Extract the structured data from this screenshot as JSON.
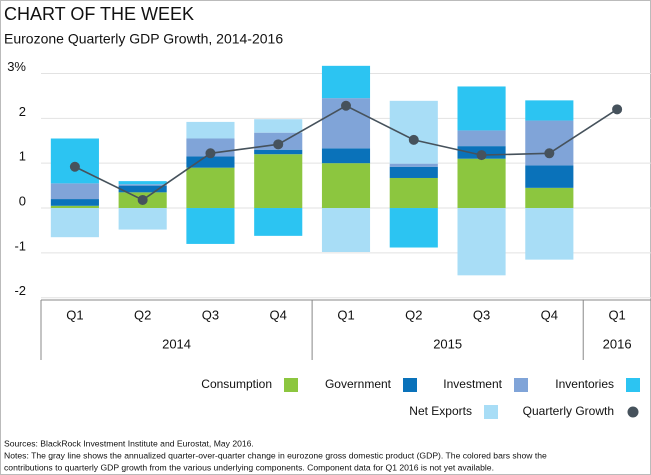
{
  "chart_data": {
    "type": "stacked-bar-line",
    "title": "CHART OF THE WEEK",
    "subtitle": "Eurozone Quarterly GDP Growth, 2014-2016",
    "categories": [
      "Q1",
      "Q2",
      "Q3",
      "Q4",
      "Q1",
      "Q2",
      "Q3",
      "Q4",
      "Q1"
    ],
    "years": [
      "2014",
      "2015",
      "2016"
    ],
    "ylim": [
      -2.05,
      3.3
    ],
    "yticks": [
      {
        "value": 3,
        "label": "3%"
      },
      2,
      1,
      0,
      -1,
      -2
    ],
    "grid": true,
    "series": [
      {
        "name": "Consumption",
        "color": "#8cc63f",
        "kind": "bar",
        "values": [
          0.05,
          0.35,
          0.9,
          1.2,
          1.0,
          0.67,
          1.1,
          0.45,
          null
        ]
      },
      {
        "name": "Government",
        "color": "#0a72ba",
        "kind": "bar",
        "values": [
          0.15,
          0.15,
          0.25,
          0.1,
          0.33,
          0.25,
          0.28,
          0.5,
          null
        ]
      },
      {
        "name": "Investment",
        "color": "#80a4d8",
        "kind": "bar",
        "values": [
          0.35,
          0.03,
          0.4,
          0.38,
          1.12,
          0.07,
          0.35,
          1.0,
          null
        ]
      },
      {
        "name": "Inventories",
        "color": "#2cc4f2",
        "kind": "bar",
        "values": [
          1.0,
          0.07,
          -0.8,
          -0.62,
          0.72,
          -0.88,
          0.98,
          0.45,
          null
        ]
      },
      {
        "name": "Net Exports",
        "color": "#a8ddf6",
        "kind": "bar",
        "values": [
          -0.65,
          -0.48,
          0.37,
          0.3,
          -0.98,
          1.4,
          -1.5,
          -1.15,
          null
        ]
      },
      {
        "name": "Quarterly Growth",
        "color": "#46525c",
        "kind": "line",
        "values": [
          0.92,
          0.18,
          1.22,
          1.42,
          2.28,
          1.52,
          1.18,
          1.22,
          2.2
        ]
      }
    ],
    "notes": [
      "Sources: BlackRock Investment Institute and Eurostat, May 2016.",
      "Notes: The gray line shows the annualized quarter-over-quarter change in eurozone gross domestic product (GDP). The colored bars show the",
      "contributions to quarterly GDP growth from the various underlying components. Component data for Q1 2016 is not yet available."
    ]
  }
}
